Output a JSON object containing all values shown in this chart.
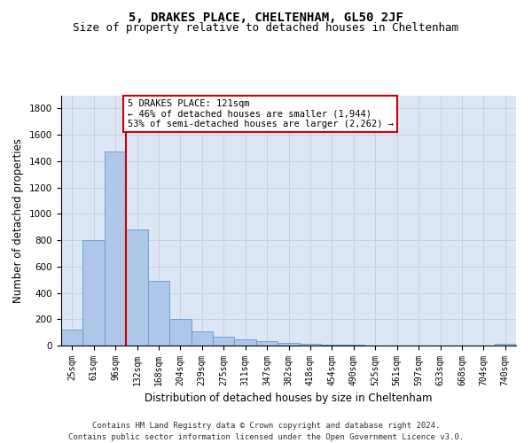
{
  "title_line1": "5, DRAKES PLACE, CHELTENHAM, GL50 2JF",
  "title_line2": "Size of property relative to detached houses in Cheltenham",
  "xlabel": "Distribution of detached houses by size in Cheltenham",
  "ylabel": "Number of detached properties",
  "footer_line1": "Contains HM Land Registry data © Crown copyright and database right 2024.",
  "footer_line2": "Contains public sector information licensed under the Open Government Licence v3.0.",
  "annotation_line1": "5 DRAKES PLACE: 121sqm",
  "annotation_line2": "← 46% of detached houses are smaller (1,944)",
  "annotation_line3": "53% of semi-detached houses are larger (2,262) →",
  "bar_labels": [
    "25sqm",
    "61sqm",
    "96sqm",
    "132sqm",
    "168sqm",
    "204sqm",
    "239sqm",
    "275sqm",
    "311sqm",
    "347sqm",
    "382sqm",
    "418sqm",
    "454sqm",
    "490sqm",
    "525sqm",
    "561sqm",
    "597sqm",
    "633sqm",
    "668sqm",
    "704sqm",
    "740sqm"
  ],
  "bar_values": [
    120,
    800,
    1470,
    880,
    490,
    205,
    105,
    65,
    45,
    35,
    20,
    15,
    8,
    5,
    3,
    2,
    2,
    1,
    1,
    1,
    15
  ],
  "bar_color": "#aec6e8",
  "bar_edge_color": "#5b9bd5",
  "vline_color": "#cc0000",
  "vline_x_index": 2.5,
  "ylim": [
    0,
    1900
  ],
  "yticks": [
    0,
    200,
    400,
    600,
    800,
    1000,
    1200,
    1400,
    1600,
    1800
  ],
  "grid_color": "#c8d0dc",
  "background_color": "#dce6f5",
  "annotation_box_edge_color": "#cc0000",
  "title_fontsize": 10,
  "subtitle_fontsize": 9,
  "axis_label_fontsize": 8.5,
  "tick_fontsize": 7.5,
  "footer_fontsize": 6.5,
  "annotation_fontsize": 7.5
}
